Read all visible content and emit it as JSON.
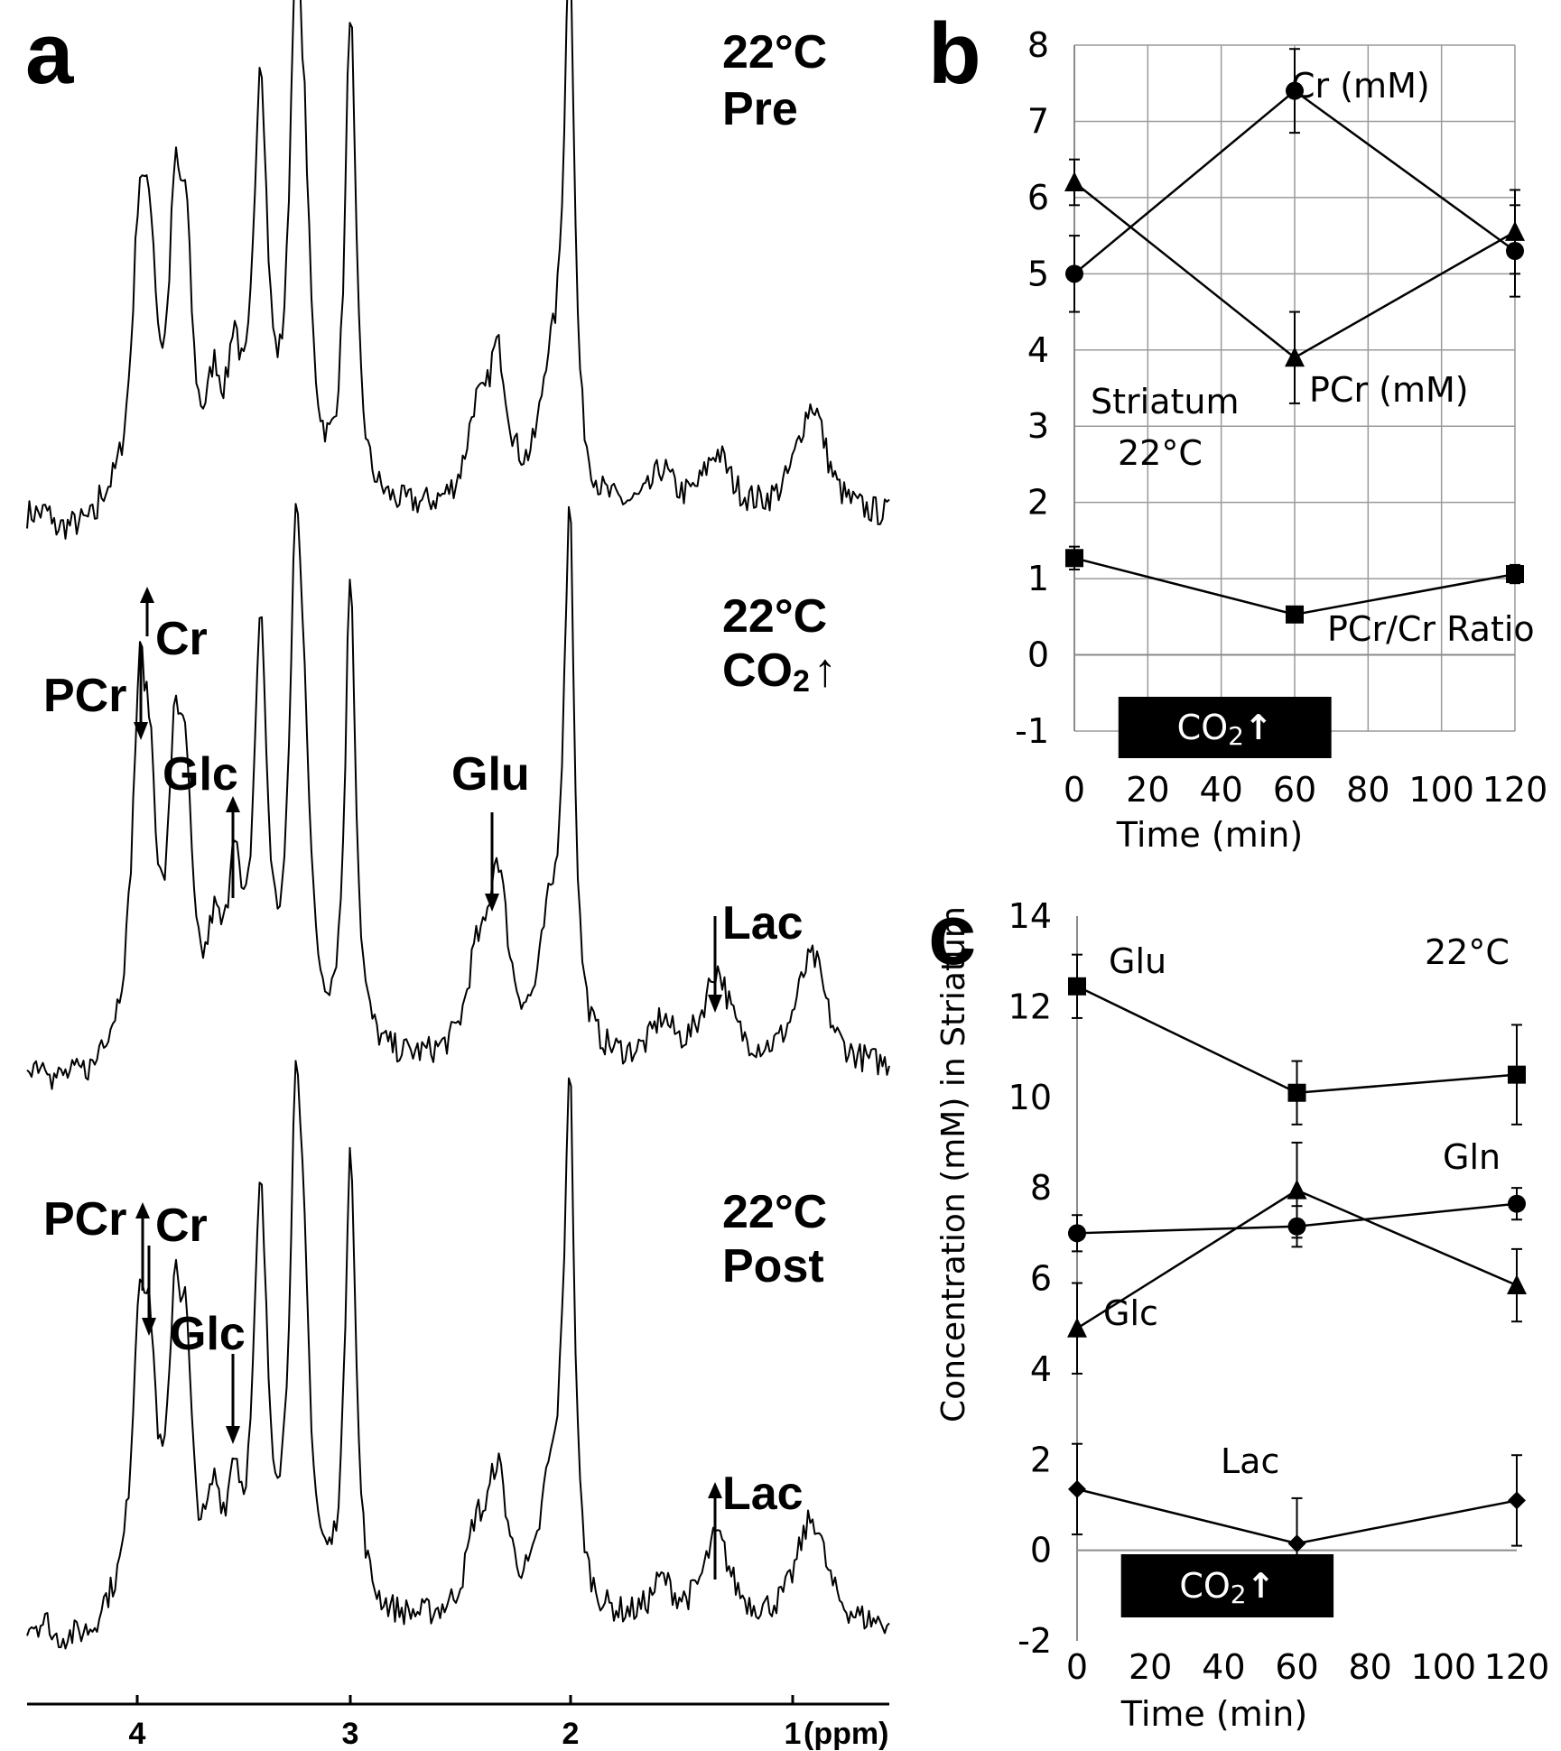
{
  "panel_labels": {
    "a": "a",
    "b": "b",
    "c": "c"
  },
  "spectra": {
    "x_unit": "(ppm)",
    "x_ticks": [
      "4",
      "3",
      "2",
      "1"
    ],
    "traces": [
      {
        "name": "pre",
        "line1": "22°C",
        "line2": "Pre"
      },
      {
        "name": "co2",
        "line1": "22°C",
        "line2_text": "CO",
        "line2_sub": "2",
        "line2_arrow": "↑"
      },
      {
        "name": "post",
        "line1": "22°C",
        "line2": "Post"
      }
    ],
    "annotations": {
      "co2": {
        "cr": "Cr",
        "pcr": "PCr",
        "glc": "Glc",
        "glu": "Glu",
        "lac": "Lac"
      },
      "post": {
        "cr": "Cr",
        "pcr": "PCr",
        "glc": "Glc",
        "lac": "Lac"
      }
    }
  },
  "chart_data": [
    {
      "type": "line",
      "panel": "b",
      "xlabel": "Time (min)",
      "ylabel": "",
      "xlim": [
        0,
        120
      ],
      "ylim": [
        -1,
        8
      ],
      "x_ticks": [
        0,
        20,
        40,
        60,
        80,
        100,
        120
      ],
      "y_ticks": [
        -1,
        0,
        1,
        2,
        3,
        4,
        5,
        6,
        7,
        8
      ],
      "grid": true,
      "series": [
        {
          "name": "Cr (mM)",
          "marker": "circle",
          "x": [
            0,
            60,
            120
          ],
          "values": [
            5.0,
            7.4,
            5.3
          ],
          "err": [
            0.5,
            0.55,
            0.6
          ]
        },
        {
          "name": "PCr (mM)",
          "marker": "triangle",
          "x": [
            0,
            60,
            120
          ],
          "values": [
            6.2,
            3.9,
            5.55
          ],
          "err": [
            0.3,
            0.6,
            0.55
          ]
        },
        {
          "name": "PCr/Cr Ratio",
          "marker": "square",
          "x": [
            0,
            60,
            120
          ],
          "values": [
            1.27,
            0.53,
            1.06
          ],
          "err": [
            0.15,
            0.08,
            0.12
          ]
        }
      ],
      "annotations": [
        "Striatum",
        "22°C"
      ],
      "co2_bar": {
        "text": "CO",
        "sub": "2",
        "arrow": "↑",
        "x_range": [
          12,
          70
        ]
      }
    },
    {
      "type": "line",
      "panel": "c",
      "xlabel": "Time (min)",
      "ylabel": "Concentration (mM) in Striatum",
      "xlim": [
        0,
        120
      ],
      "ylim": [
        -2,
        14
      ],
      "x_ticks": [
        0,
        20,
        40,
        60,
        80,
        100,
        120
      ],
      "y_ticks": [
        -2,
        0,
        2,
        4,
        6,
        8,
        10,
        12,
        14
      ],
      "grid": false,
      "series": [
        {
          "name": "Glu",
          "marker": "square",
          "x": [
            0,
            60,
            120
          ],
          "values": [
            12.45,
            10.1,
            10.5
          ],
          "err": [
            0.7,
            0.7,
            1.1
          ]
        },
        {
          "name": "Gln",
          "marker": "circle",
          "x": [
            0,
            60,
            120
          ],
          "values": [
            7.0,
            7.15,
            7.65
          ],
          "err": [
            0.4,
            0.45,
            0.35
          ]
        },
        {
          "name": "Glc",
          "marker": "triangle",
          "x": [
            0,
            60,
            120
          ],
          "values": [
            4.9,
            7.95,
            5.85
          ],
          "err": [
            1.0,
            1.05,
            0.8
          ]
        },
        {
          "name": "Lac",
          "marker": "diamond",
          "x": [
            0,
            60,
            120
          ],
          "values": [
            1.35,
            0.15,
            1.1
          ],
          "err": [
            1.0,
            1.0,
            1.0
          ]
        }
      ],
      "annotations": [
        "22°C"
      ],
      "co2_bar": {
        "text": "CO",
        "sub": "2",
        "arrow": "↑",
        "x_range": [
          12,
          70
        ]
      }
    }
  ]
}
